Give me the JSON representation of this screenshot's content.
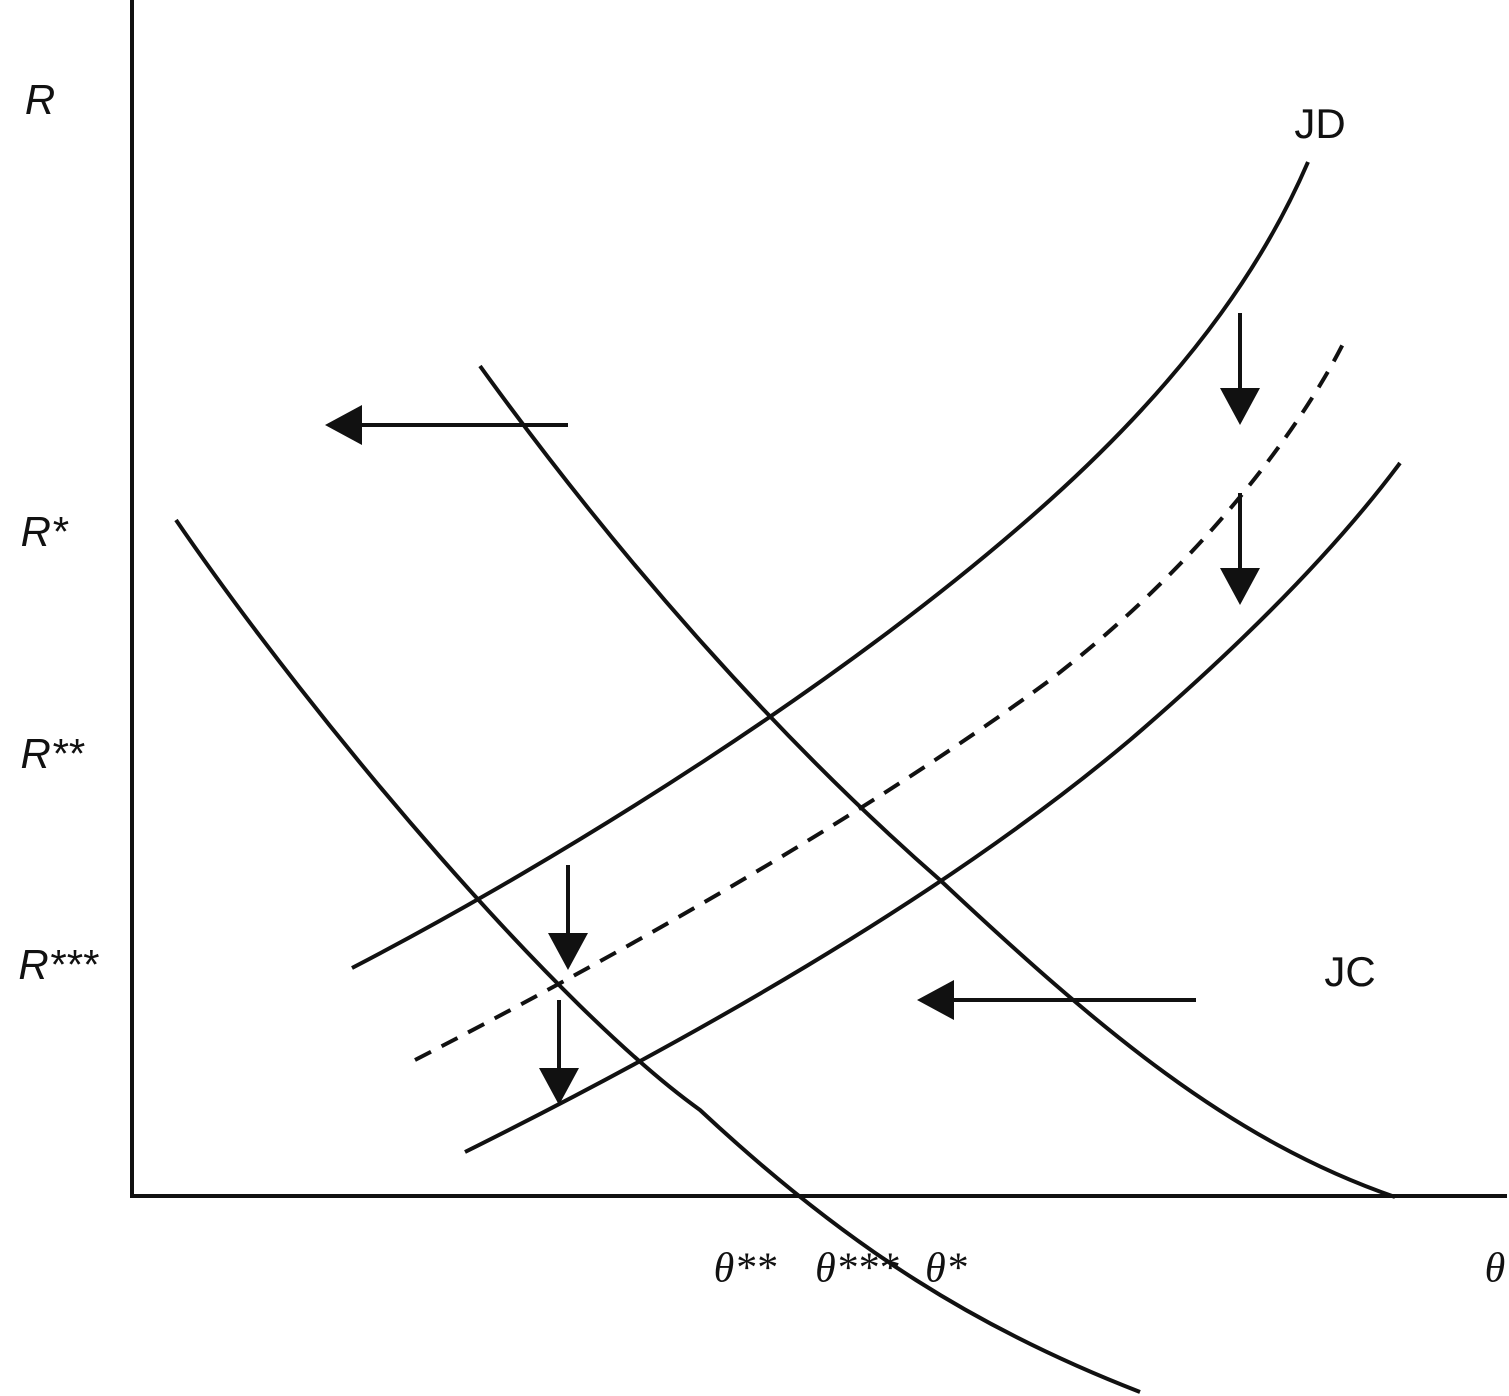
{
  "axes": {
    "y_label": "R",
    "x_label": "θ"
  },
  "y_levels": [
    "R*",
    "R**",
    "R***"
  ],
  "x_levels": [
    "θ**",
    "θ***",
    "θ*"
  ],
  "curve_labels": {
    "job_destruction": "JD",
    "job_creation": "JC"
  }
}
